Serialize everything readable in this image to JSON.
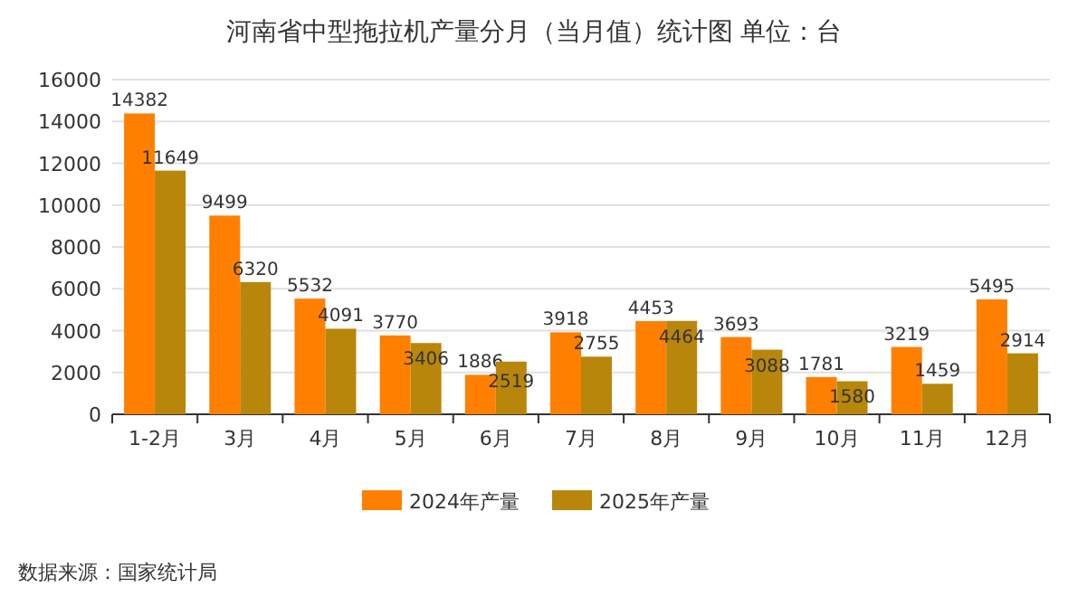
{
  "chart_data": {
    "type": "bar",
    "title": "河南省中型拖拉机产量分月（当月值）统计图 单位：台",
    "categories": [
      "1-2月",
      "3月",
      "4月",
      "5月",
      "6月",
      "7月",
      "8月",
      "9月",
      "10月",
      "11月",
      "12月"
    ],
    "series": [
      {
        "name": "2024年产量",
        "color": "#ff8000",
        "values": [
          14382,
          9499,
          5532,
          3770,
          1886,
          3918,
          4453,
          3693,
          1781,
          3219,
          5495
        ]
      },
      {
        "name": "2025年产量",
        "color": "#b8860b",
        "values": [
          11649,
          6320,
          4091,
          3406,
          2519,
          2755,
          4464,
          3088,
          1580,
          1459,
          2914
        ]
      }
    ],
    "ylim": [
      0,
      16000
    ],
    "yticks": [
      0,
      2000,
      4000,
      6000,
      8000,
      10000,
      12000,
      14000,
      16000
    ],
    "grid": "y",
    "legend": "bottom",
    "data_labels": true,
    "annotations": [
      "数据来源：国家统计局"
    ]
  }
}
